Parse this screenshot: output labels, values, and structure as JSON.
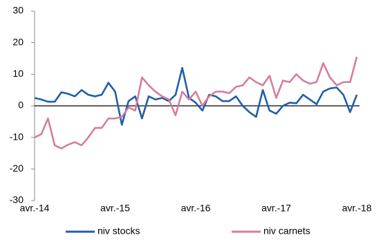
{
  "chart_data": {
    "type": "line",
    "categories": [
      "avr.-14",
      null,
      null,
      null,
      null,
      null,
      null,
      null,
      null,
      null,
      null,
      null,
      "avr.-15",
      null,
      null,
      null,
      null,
      null,
      null,
      null,
      null,
      null,
      null,
      null,
      "avr.-16",
      null,
      null,
      null,
      null,
      null,
      null,
      null,
      null,
      null,
      null,
      null,
      "avr.-17",
      null,
      null,
      null,
      null,
      null,
      null,
      null,
      null,
      null,
      null,
      null,
      "avr.-18"
    ],
    "series": [
      {
        "name": "niv stocks",
        "color": "#1f5fa8",
        "values": [
          2.5,
          2,
          1.3,
          1.3,
          4.3,
          3.8,
          3,
          5,
          3.5,
          3,
          3.5,
          7.3,
          4.5,
          -6,
          1.5,
          3,
          -4,
          3,
          2,
          2.5,
          1.5,
          3.5,
          12,
          2.5,
          1,
          -1.5,
          3.5,
          3,
          1.5,
          1.5,
          3,
          0,
          -2,
          -3.5,
          5,
          -1.5,
          -2.5,
          0,
          1,
          0.8,
          3.5,
          2,
          0.5,
          4.5,
          5.5,
          5.8,
          3.5,
          -2,
          3.5
        ]
      },
      {
        "name": "niv carnets",
        "color": "#d67ba0",
        "values": [
          -10,
          -9,
          -4,
          -12.5,
          -13.5,
          -12.3,
          -11.5,
          -12.5,
          -10,
          -7,
          -7,
          -4,
          -4,
          -3.5,
          -0.5,
          -1.5,
          9,
          6.5,
          4.5,
          3,
          2,
          -3,
          4.5,
          2,
          4.5,
          0,
          3,
          4.5,
          4.5,
          4,
          6,
          6.5,
          9,
          7.5,
          6.5,
          9.5,
          2.5,
          8,
          7.5,
          10,
          8,
          7,
          7.5,
          13.5,
          9,
          6.5,
          7.5,
          7.5,
          15.5
        ]
      }
    ],
    "ylim": [
      -30,
      30
    ],
    "yticks": [
      -30,
      -20,
      -10,
      0,
      10,
      20,
      30
    ],
    "legend": "bottom"
  }
}
